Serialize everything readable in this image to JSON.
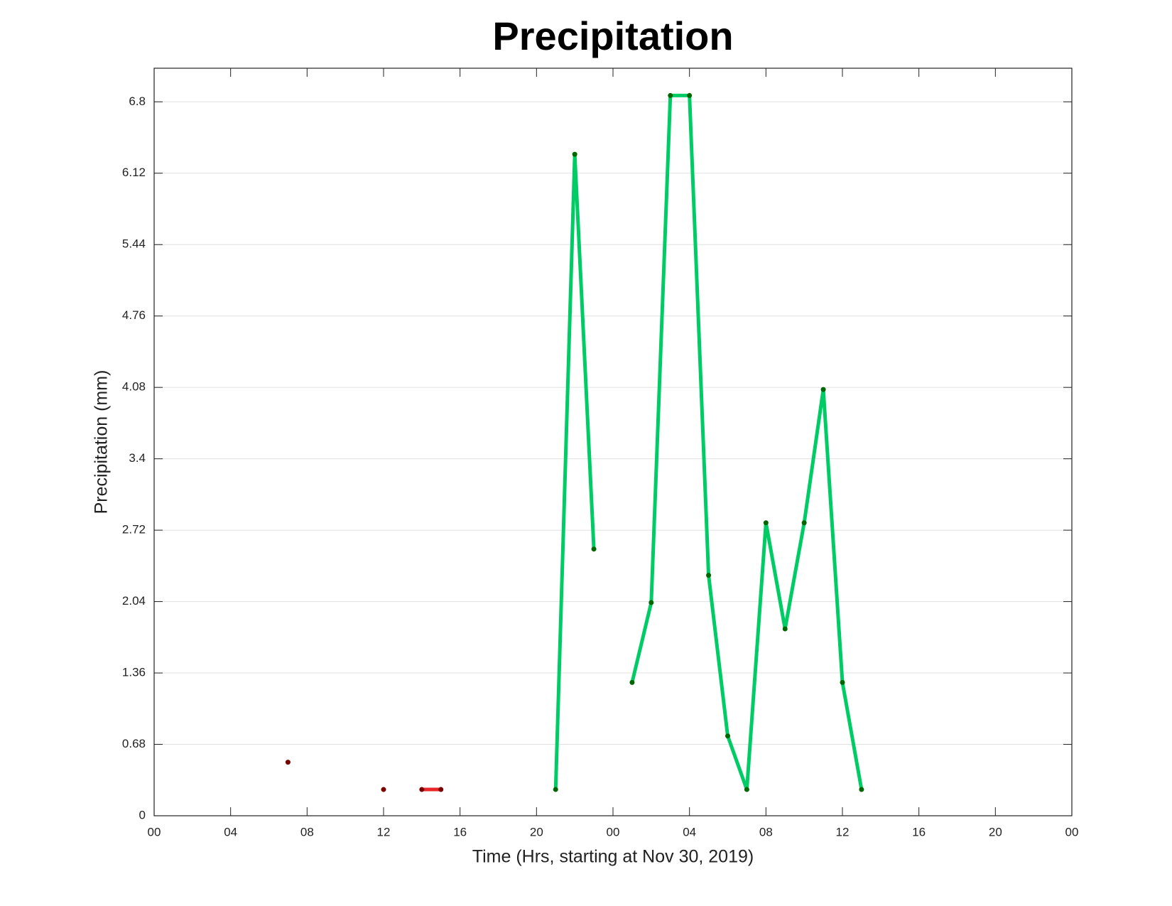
{
  "chart_data": {
    "type": "line",
    "title": "Precipitation",
    "x_label": "Time (Hrs, starting at Nov 30, 2019)",
    "y_label": "Precipitation (mm)",
    "xlim": [
      0,
      48
    ],
    "ylim": [
      0,
      7.12
    ],
    "xticks": [
      {
        "value": 0,
        "label": "00"
      },
      {
        "value": 4,
        "label": "04"
      },
      {
        "value": 8,
        "label": "08"
      },
      {
        "value": 12,
        "label": "12"
      },
      {
        "value": 16,
        "label": "16"
      },
      {
        "value": 20,
        "label": "20"
      },
      {
        "value": 24,
        "label": "00"
      },
      {
        "value": 28,
        "label": "04"
      },
      {
        "value": 32,
        "label": "08"
      },
      {
        "value": 36,
        "label": "12"
      },
      {
        "value": 40,
        "label": "16"
      },
      {
        "value": 44,
        "label": "20"
      },
      {
        "value": 48,
        "label": "00"
      }
    ],
    "yticks": [
      0,
      0.68,
      1.36,
      2.04,
      2.72,
      3.4,
      4.08,
      4.76,
      5.44,
      6.12,
      6.8
    ],
    "grid": true,
    "series": [
      {
        "color": "#e8262a",
        "marker_color": "#7a0000",
        "x": [
          7,
          8,
          12,
          13,
          14,
          15
        ],
        "values": [
          0.51,
          null,
          0.25,
          null,
          0.25,
          0.25
        ]
      },
      {
        "color": "#00cc66",
        "marker_color": "#006600",
        "x": [
          21,
          22,
          23,
          24,
          25,
          26,
          27,
          28,
          29,
          30,
          31,
          32,
          33,
          34,
          35,
          36,
          37
        ],
        "values": [
          0.25,
          6.3,
          2.54,
          null,
          1.27,
          2.03,
          6.86,
          6.86,
          2.29,
          0.76,
          0.25,
          2.79,
          1.78,
          2.79,
          4.06,
          1.27,
          0.25
        ]
      }
    ]
  }
}
